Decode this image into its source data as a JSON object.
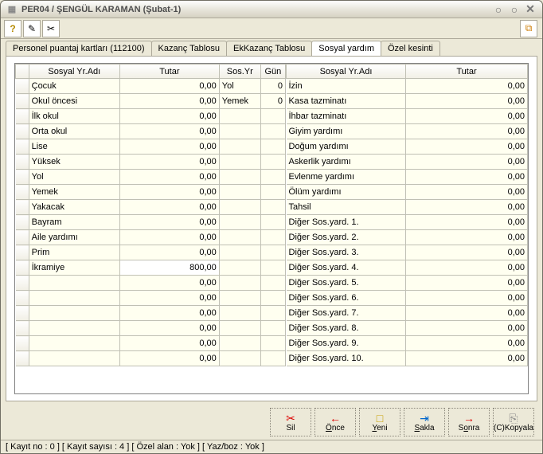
{
  "titlebar": {
    "title": "PER04 / ŞENGÜL KARAMAN  (Şubat-1)"
  },
  "tabs": [
    {
      "label": "Personel puantaj kartları (112100)"
    },
    {
      "label": "Kazanç Tablosu"
    },
    {
      "label": "EkKazanç Tablosu"
    },
    {
      "label": "Sosyal yardım"
    },
    {
      "label": "Özel kesinti"
    }
  ],
  "headers": {
    "left": {
      "name": "Sosyal Yr.Adı",
      "amount": "Tutar",
      "syr": "Sos.Yr",
      "gun": "Gün"
    },
    "right": {
      "name": "Sosyal Yr.Adı",
      "amount": "Tutar"
    }
  },
  "leftRows": [
    {
      "name": "Çocuk",
      "amount": "0,00",
      "syr": "Yol",
      "gun": "0"
    },
    {
      "name": "Okul öncesi",
      "amount": "0,00",
      "syr": "Yemek",
      "gun": "0"
    },
    {
      "name": "İlk okul",
      "amount": "0,00",
      "syr": "",
      "gun": ""
    },
    {
      "name": "Orta okul",
      "amount": "0,00",
      "syr": "",
      "gun": ""
    },
    {
      "name": "Lise",
      "amount": "0,00",
      "syr": "",
      "gun": ""
    },
    {
      "name": "Yüksek",
      "amount": "0,00",
      "syr": "",
      "gun": ""
    },
    {
      "name": "Yol",
      "amount": "0,00",
      "syr": "",
      "gun": ""
    },
    {
      "name": "Yemek",
      "amount": "0,00",
      "syr": "",
      "gun": ""
    },
    {
      "name": "Yakacak",
      "amount": "0,00",
      "syr": "",
      "gun": ""
    },
    {
      "name": "Bayram",
      "amount": "0,00",
      "syr": "",
      "gun": ""
    },
    {
      "name": "Aile yardımı",
      "amount": "0,00",
      "syr": "",
      "gun": ""
    },
    {
      "name": "Prim",
      "amount": "0,00",
      "syr": "",
      "gun": ""
    },
    {
      "name": "İkramiye",
      "amount": "800,00",
      "syr": "",
      "gun": "",
      "active": true
    },
    {
      "name": "",
      "amount": "0,00",
      "syr": "",
      "gun": ""
    },
    {
      "name": "",
      "amount": "0,00",
      "syr": "",
      "gun": ""
    },
    {
      "name": "",
      "amount": "0,00",
      "syr": "",
      "gun": ""
    },
    {
      "name": "",
      "amount": "0,00",
      "syr": "",
      "gun": ""
    },
    {
      "name": "",
      "amount": "0,00",
      "syr": "",
      "gun": ""
    },
    {
      "name": "",
      "amount": "0,00",
      "syr": "",
      "gun": ""
    }
  ],
  "rightRows": [
    {
      "name": "İzin",
      "amount": "0,00"
    },
    {
      "name": "Kasa tazminatı",
      "amount": "0,00"
    },
    {
      "name": "İhbar tazminatı",
      "amount": "0,00"
    },
    {
      "name": "Giyim yardımı",
      "amount": "0,00"
    },
    {
      "name": "Doğum yardımı",
      "amount": "0,00"
    },
    {
      "name": "Askerlik yardımı",
      "amount": "0,00"
    },
    {
      "name": "Evlenme yardımı",
      "amount": "0,00"
    },
    {
      "name": "Ölüm yardımı",
      "amount": "0,00"
    },
    {
      "name": "Tahsil",
      "amount": "0,00"
    },
    {
      "name": "Diğer Sos.yard. 1.",
      "amount": "0,00"
    },
    {
      "name": "Diğer Sos.yard. 2.",
      "amount": "0,00"
    },
    {
      "name": "Diğer Sos.yard. 3.",
      "amount": "0,00"
    },
    {
      "name": "Diğer Sos.yard. 4.",
      "amount": "0,00"
    },
    {
      "name": "Diğer Sos.yard. 5.",
      "amount": "0,00"
    },
    {
      "name": "Diğer Sos.yard. 6.",
      "amount": "0,00"
    },
    {
      "name": "Diğer Sos.yard. 7.",
      "amount": "0,00"
    },
    {
      "name": "Diğer Sos.yard. 8.",
      "amount": "0,00"
    },
    {
      "name": "Diğer Sos.yard. 9.",
      "amount": "0,00"
    },
    {
      "name": "Diğer Sos.yard. 10.",
      "amount": "0,00"
    }
  ],
  "buttons": {
    "sil": "Sil",
    "once": "Önce",
    "yeni": "Yeni",
    "sakla": "Sakla",
    "sonra": "Sonra",
    "kopyala": "(C)Kopyala"
  },
  "status": "[ Kayıt no : 0 ] [ Kayıt sayısı : 4 ] [ Özel alan : Yok ] [ Yaz/boz : Yok ]"
}
